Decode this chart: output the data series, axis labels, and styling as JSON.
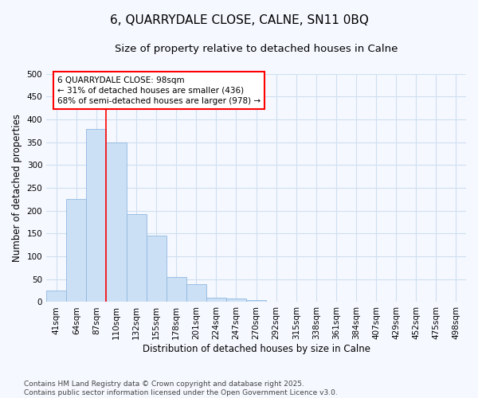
{
  "title": "6, QUARRYDALE CLOSE, CALNE, SN11 0BQ",
  "subtitle": "Size of property relative to detached houses in Calne",
  "xlabel": "Distribution of detached houses by size in Calne",
  "ylabel": "Number of detached properties",
  "bar_color": "#cce0f5",
  "bar_edge_color": "#90b8e0",
  "categories": [
    "41sqm",
    "64sqm",
    "87sqm",
    "110sqm",
    "132sqm",
    "155sqm",
    "178sqm",
    "201sqm",
    "224sqm",
    "247sqm",
    "270sqm",
    "292sqm",
    "315sqm",
    "338sqm",
    "361sqm",
    "384sqm",
    "407sqm",
    "429sqm",
    "452sqm",
    "475sqm",
    "498sqm"
  ],
  "values": [
    25,
    225,
    380,
    350,
    193,
    145,
    55,
    40,
    10,
    7,
    5,
    1,
    0,
    0,
    0,
    0,
    0,
    1,
    0,
    1,
    0
  ],
  "ylim": [
    0,
    500
  ],
  "yticks": [
    0,
    50,
    100,
    150,
    200,
    250,
    300,
    350,
    400,
    450,
    500
  ],
  "red_line_x": 2.5,
  "annotation_text": "6 QUARRYDALE CLOSE: 98sqm\n← 31% of detached houses are smaller (436)\n68% of semi-detached houses are larger (978) →",
  "footer_text": "Contains HM Land Registry data © Crown copyright and database right 2025.\nContains public sector information licensed under the Open Government Licence v3.0.",
  "background_color": "#f5f8ff",
  "grid_color": "#d0dff0",
  "title_fontsize": 11,
  "subtitle_fontsize": 9.5,
  "axis_label_fontsize": 8.5,
  "tick_fontsize": 7.5,
  "annotation_fontsize": 7.5,
  "footer_fontsize": 6.5
}
